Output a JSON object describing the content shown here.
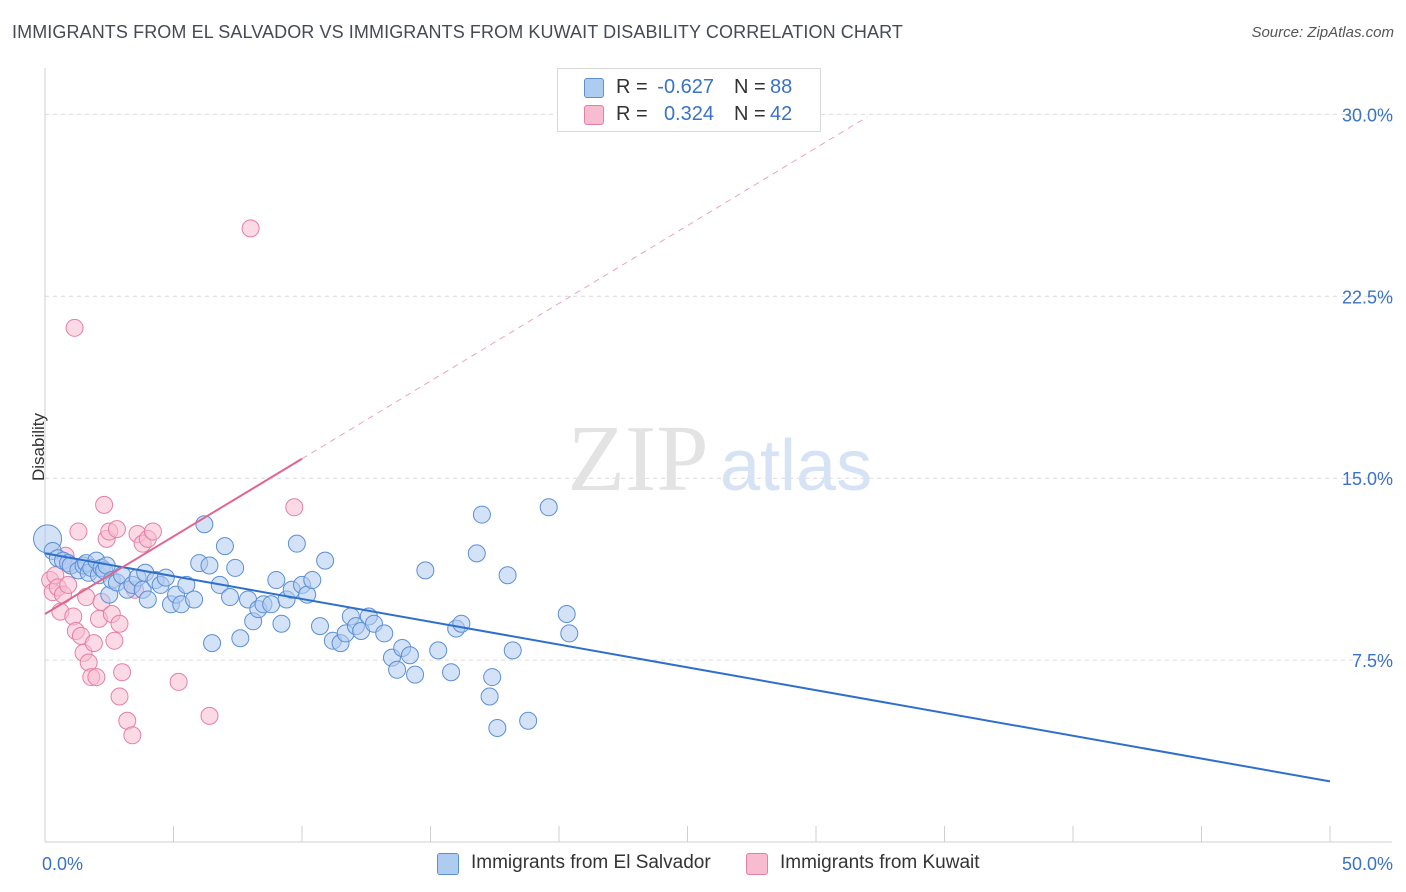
{
  "title": "IMMIGRANTS FROM EL SALVADOR VS IMMIGRANTS FROM KUWAIT DISABILITY CORRELATION CHART",
  "source": "Source: ZipAtlas.com",
  "watermark": {
    "zip": "ZIP",
    "atlas": "atlas"
  },
  "colors": {
    "blue_fill": "#aecbf0",
    "blue_stroke": "#5b8fd6",
    "blue_line": "#2f6fcc",
    "pink_fill": "#f7bcd0",
    "pink_stroke": "#e57fa3",
    "pink_line": "#e0668f",
    "grid": "#d9d9d9",
    "tick_text": "#3a72c7"
  },
  "legend_top": [
    {
      "r_label": "R =",
      "r_value": "-0.627",
      "n_label": "N =",
      "n_value": "88"
    },
    {
      "r_label": "R =",
      "r_value": "0.324",
      "n_label": "N =",
      "n_value": "42"
    }
  ],
  "legend_bottom": [
    "Immigrants from El Salvador",
    "Immigrants from Kuwait"
  ],
  "chart_data": {
    "type": "scatter",
    "title": "IMMIGRANTS FROM EL SALVADOR VS IMMIGRANTS FROM KUWAIT DISABILITY CORRELATION CHART",
    "xlabel": "",
    "ylabel": "Disability",
    "xlim": [
      0,
      50
    ],
    "ylim": [
      0,
      31.5
    ],
    "x_tick_labels": [
      "0.0%",
      "50.0%"
    ],
    "y_ticks": [
      7.5,
      15.0,
      22.5,
      30.0
    ],
    "y_tick_labels": [
      "7.5%",
      "15.0%",
      "22.5%",
      "30.0%"
    ],
    "grid": "horizontal dashed",
    "legend_placement": "top-center",
    "series": [
      {
        "name": "Immigrants from El Salvador",
        "r": -0.627,
        "n": 88,
        "trend": {
          "x0": 0,
          "y0": 11.9,
          "x1": 50,
          "y1": 2.5
        },
        "points": [
          [
            0.1,
            12.5
          ],
          [
            0.3,
            12.0
          ],
          [
            0.5,
            11.7
          ],
          [
            0.7,
            11.6
          ],
          [
            0.9,
            11.5
          ],
          [
            1.0,
            11.4
          ],
          [
            1.3,
            11.2
          ],
          [
            1.5,
            11.4
          ],
          [
            1.6,
            11.5
          ],
          [
            1.7,
            11.1
          ],
          [
            1.8,
            11.3
          ],
          [
            2.0,
            11.6
          ],
          [
            2.1,
            11.0
          ],
          [
            2.2,
            11.3
          ],
          [
            2.3,
            11.2
          ],
          [
            2.4,
            11.4
          ],
          [
            2.5,
            10.2
          ],
          [
            2.6,
            10.8
          ],
          [
            2.8,
            10.7
          ],
          [
            3.0,
            11.0
          ],
          [
            3.2,
            10.4
          ],
          [
            3.4,
            10.6
          ],
          [
            3.6,
            10.9
          ],
          [
            3.8,
            10.4
          ],
          [
            3.9,
            11.1
          ],
          [
            4.0,
            10.0
          ],
          [
            4.3,
            10.8
          ],
          [
            4.5,
            10.6
          ],
          [
            4.7,
            10.9
          ],
          [
            4.9,
            9.8
          ],
          [
            5.1,
            10.2
          ],
          [
            5.3,
            9.8
          ],
          [
            5.5,
            10.6
          ],
          [
            5.8,
            10.0
          ],
          [
            6.0,
            11.5
          ],
          [
            6.2,
            13.1
          ],
          [
            6.4,
            11.4
          ],
          [
            6.5,
            8.2
          ],
          [
            6.8,
            10.6
          ],
          [
            7.0,
            12.2
          ],
          [
            7.2,
            10.1
          ],
          [
            7.4,
            11.3
          ],
          [
            7.6,
            8.4
          ],
          [
            7.9,
            10.0
          ],
          [
            8.1,
            9.1
          ],
          [
            8.3,
            9.6
          ],
          [
            8.5,
            9.8
          ],
          [
            8.8,
            9.8
          ],
          [
            9.0,
            10.8
          ],
          [
            9.2,
            9.0
          ],
          [
            9.4,
            10.0
          ],
          [
            9.6,
            10.4
          ],
          [
            9.8,
            12.3
          ],
          [
            10.0,
            10.6
          ],
          [
            10.2,
            10.2
          ],
          [
            10.4,
            10.8
          ],
          [
            10.7,
            8.9
          ],
          [
            10.9,
            11.6
          ],
          [
            11.2,
            8.3
          ],
          [
            11.5,
            8.2
          ],
          [
            11.7,
            8.6
          ],
          [
            11.9,
            9.3
          ],
          [
            12.1,
            8.9
          ],
          [
            12.3,
            8.7
          ],
          [
            12.6,
            9.3
          ],
          [
            12.8,
            9.0
          ],
          [
            13.2,
            8.6
          ],
          [
            13.5,
            7.6
          ],
          [
            13.7,
            7.1
          ],
          [
            13.9,
            8.0
          ],
          [
            14.2,
            7.7
          ],
          [
            14.4,
            6.9
          ],
          [
            14.8,
            11.2
          ],
          [
            15.3,
            7.9
          ],
          [
            15.8,
            7.0
          ],
          [
            16.0,
            8.8
          ],
          [
            16.2,
            9.0
          ],
          [
            16.8,
            11.9
          ],
          [
            17.0,
            13.5
          ],
          [
            17.3,
            6.0
          ],
          [
            17.4,
            6.8
          ],
          [
            17.6,
            4.7
          ],
          [
            18.0,
            11.0
          ],
          [
            18.2,
            7.9
          ],
          [
            18.8,
            5.0
          ],
          [
            19.6,
            13.8
          ],
          [
            20.3,
            9.4
          ],
          [
            20.4,
            8.6
          ]
        ]
      },
      {
        "name": "Immigrants from Kuwait",
        "r": 0.324,
        "n": 42,
        "trend": {
          "x0": 0,
          "y0": 9.4,
          "x1": 10,
          "y1": 15.8
        },
        "trend_extension": {
          "x0": 10,
          "y0": 15.8,
          "x1": 32,
          "y1": 29.9
        },
        "points": [
          [
            0.2,
            10.8
          ],
          [
            0.3,
            10.3
          ],
          [
            0.4,
            11.0
          ],
          [
            0.5,
            10.5
          ],
          [
            0.6,
            9.5
          ],
          [
            0.7,
            10.2
          ],
          [
            0.8,
            11.8
          ],
          [
            0.9,
            10.6
          ],
          [
            1.0,
            11.4
          ],
          [
            1.1,
            9.3
          ],
          [
            1.2,
            8.7
          ],
          [
            1.3,
            12.8
          ],
          [
            1.4,
            8.5
          ],
          [
            1.5,
            7.8
          ],
          [
            1.6,
            10.1
          ],
          [
            1.7,
            7.4
          ],
          [
            1.8,
            6.8
          ],
          [
            1.9,
            8.2
          ],
          [
            2.0,
            6.8
          ],
          [
            2.1,
            9.2
          ],
          [
            2.2,
            9.9
          ],
          [
            2.3,
            13.9
          ],
          [
            2.4,
            12.5
          ],
          [
            2.5,
            12.8
          ],
          [
            2.6,
            9.4
          ],
          [
            2.7,
            8.3
          ],
          [
            2.8,
            12.9
          ],
          [
            2.9,
            6.0
          ],
          [
            3.0,
            7.0
          ],
          [
            3.2,
            5.0
          ],
          [
            3.4,
            4.4
          ],
          [
            3.6,
            12.7
          ],
          [
            3.8,
            12.3
          ],
          [
            4.0,
            12.5
          ],
          [
            4.2,
            12.8
          ],
          [
            3.5,
            10.4
          ],
          [
            1.15,
            21.2
          ],
          [
            8.0,
            25.3
          ],
          [
            6.4,
            5.2
          ],
          [
            5.2,
            6.6
          ],
          [
            9.7,
            13.8
          ],
          [
            2.9,
            9.0
          ]
        ]
      }
    ]
  }
}
